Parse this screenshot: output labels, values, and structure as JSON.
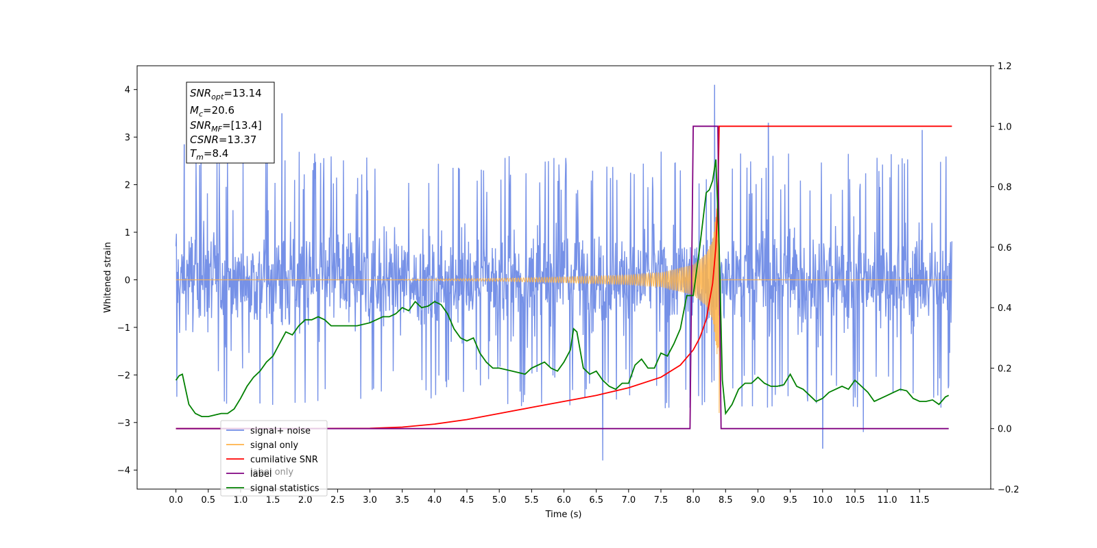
{
  "chart_data": {
    "type": "line",
    "xlabel": "Time (s)",
    "ylabel": "Whitened strain",
    "xlim": [
      -0.6,
      12.6
    ],
    "ylim": [
      -4.4,
      4.5
    ],
    "y2lim": [
      -0.2,
      1.2
    ],
    "x_ticks": [
      0.0,
      0.5,
      1.0,
      1.5,
      2.0,
      2.5,
      3.0,
      3.5,
      4.0,
      4.5,
      5.0,
      5.5,
      6.0,
      6.5,
      7.0,
      7.5,
      8.0,
      8.5,
      9.0,
      9.5,
      10.0,
      10.5,
      11.0,
      11.5
    ],
    "x_tick_labels": [
      "0.0",
      "0.5",
      "1.0",
      "1.5",
      "2.0",
      "2.5",
      "3.0",
      "3.5",
      "4.0",
      "4.5",
      "5.0",
      "5.5",
      "6.0",
      "6.5",
      "7.0",
      "7.5",
      "8.0",
      "8.5",
      "9.0",
      "9.5",
      "10.0",
      "10.5",
      "11.0",
      "11.5"
    ],
    "y_ticks": [
      4,
      3,
      2,
      1,
      0,
      -1,
      -2,
      -3,
      -4
    ],
    "y_tick_labels": [
      "4",
      "3",
      "2",
      "1",
      "0",
      "−1",
      "−2",
      "−3",
      "−4"
    ],
    "y2_ticks": [
      1.2,
      1.0,
      0.8,
      0.6,
      0.4,
      0.2,
      0.0,
      -0.2
    ],
    "y2_tick_labels": [
      "1.2",
      "1.0",
      "0.8",
      "0.6",
      "0.4",
      "0.2",
      "0.0",
      "−0.2"
    ],
    "legend_position": "lower-left",
    "legend": [
      {
        "label": "signal+ noise",
        "color": "#6f8be6"
      },
      {
        "label": "signal only",
        "color": "#ffb347"
      },
      {
        "label": "cumilative SNR",
        "color": "#ff0000"
      },
      {
        "label": "label",
        "color": "#800080"
      },
      {
        "label": "signal statistics",
        "color": "#008000"
      }
    ],
    "hidden_legend_text": [
      "label only"
    ],
    "annotation": {
      "snr_opt": "=13.14",
      "mc": "=20.6",
      "snr_mf": "=[13.4]",
      "csnr": "=13.37",
      "tm": "=8.4"
    },
    "series": [
      {
        "name": "signal+ noise",
        "axis": "left",
        "color": "#6f8be6",
        "x_range": [
          0.0,
          12.0
        ],
        "envelope_low": -2.0,
        "envelope_high": 2.0,
        "peaks": [
          {
            "x": 0.13,
            "y": 2.85
          },
          {
            "x": 1.64,
            "y": 3.5
          },
          {
            "x": 8.33,
            "y": 4.1
          },
          {
            "x": 9.16,
            "y": 3.3
          },
          {
            "x": 6.6,
            "y": -3.8
          },
          {
            "x": 10.0,
            "y": -3.55
          },
          {
            "x": 1.3,
            "y": -2.6
          },
          {
            "x": 10.63,
            "y": -3.2
          },
          {
            "x": 11.54,
            "y": 3.15
          }
        ]
      },
      {
        "name": "signal only",
        "axis": "left",
        "color": "#ffb347",
        "chirp": {
          "start": 3.5,
          "end": 8.4,
          "envelope": [
            [
              3.5,
              0.01
            ],
            [
              5.0,
              0.03
            ],
            [
              6.0,
              0.06
            ],
            [
              7.0,
              0.1
            ],
            [
              7.5,
              0.15
            ],
            [
              8.0,
              0.32
            ],
            [
              8.2,
              0.55
            ],
            [
              8.3,
              0.85
            ],
            [
              8.38,
              1.7
            ]
          ]
        }
      },
      {
        "name": "cumilative SNR",
        "axis": "right",
        "color": "#ff0000",
        "x": [
          0.0,
          2.0,
          3.0,
          3.5,
          4.0,
          4.5,
          5.0,
          5.5,
          6.0,
          6.5,
          7.0,
          7.5,
          7.8,
          8.0,
          8.1,
          8.2,
          8.3,
          8.35,
          8.38,
          8.4,
          12.0
        ],
        "y": [
          0.0,
          0.0,
          0.001,
          0.005,
          0.015,
          0.03,
          0.05,
          0.07,
          0.09,
          0.11,
          0.135,
          0.17,
          0.21,
          0.26,
          0.3,
          0.36,
          0.48,
          0.6,
          0.76,
          1.0,
          1.0
        ]
      },
      {
        "name": "label",
        "axis": "right",
        "color": "#800080",
        "x": [
          0.0,
          7.95,
          8.0,
          8.38,
          8.43,
          11.95
        ],
        "y": [
          0.0,
          0.0,
          1.0,
          1.0,
          0.0,
          0.0
        ]
      },
      {
        "name": "signal statistics",
        "axis": "right",
        "color": "#008000",
        "x": [
          0.0,
          0.05,
          0.1,
          0.15,
          0.2,
          0.3,
          0.4,
          0.5,
          0.6,
          0.7,
          0.8,
          0.9,
          1.0,
          1.1,
          1.2,
          1.3,
          1.4,
          1.5,
          1.6,
          1.7,
          1.8,
          1.9,
          2.0,
          2.1,
          2.2,
          2.3,
          2.4,
          2.5,
          2.6,
          2.8,
          3.0,
          3.2,
          3.3,
          3.4,
          3.5,
          3.6,
          3.7,
          3.8,
          3.9,
          4.0,
          4.1,
          4.2,
          4.3,
          4.4,
          4.5,
          4.6,
          4.7,
          4.8,
          4.9,
          5.0,
          5.2,
          5.4,
          5.5,
          5.6,
          5.7,
          5.8,
          5.9,
          6.0,
          6.1,
          6.15,
          6.2,
          6.3,
          6.4,
          6.5,
          6.6,
          6.7,
          6.8,
          6.9,
          7.0,
          7.1,
          7.2,
          7.3,
          7.4,
          7.5,
          7.6,
          7.7,
          7.8,
          7.9,
          8.0,
          8.1,
          8.2,
          8.25,
          8.3,
          8.35,
          8.4,
          8.45,
          8.5,
          8.6,
          8.7,
          8.8,
          8.9,
          9.0,
          9.1,
          9.2,
          9.3,
          9.4,
          9.5,
          9.6,
          9.7,
          9.8,
          9.9,
          10.0,
          10.1,
          10.2,
          10.3,
          10.4,
          10.5,
          10.6,
          10.7,
          10.8,
          10.9,
          11.0,
          11.1,
          11.2,
          11.3,
          11.4,
          11.5,
          11.6,
          11.7,
          11.8,
          11.9,
          11.95
        ],
        "y": [
          0.16,
          0.175,
          0.18,
          0.13,
          0.08,
          0.05,
          0.04,
          0.04,
          0.045,
          0.05,
          0.05,
          0.065,
          0.1,
          0.14,
          0.17,
          0.19,
          0.22,
          0.24,
          0.28,
          0.32,
          0.31,
          0.34,
          0.36,
          0.36,
          0.37,
          0.36,
          0.34,
          0.34,
          0.34,
          0.34,
          0.35,
          0.37,
          0.37,
          0.38,
          0.4,
          0.39,
          0.42,
          0.4,
          0.405,
          0.42,
          0.41,
          0.38,
          0.33,
          0.3,
          0.29,
          0.3,
          0.25,
          0.22,
          0.2,
          0.2,
          0.19,
          0.18,
          0.2,
          0.21,
          0.22,
          0.2,
          0.19,
          0.22,
          0.26,
          0.33,
          0.32,
          0.2,
          0.18,
          0.19,
          0.16,
          0.14,
          0.13,
          0.15,
          0.15,
          0.21,
          0.23,
          0.2,
          0.2,
          0.25,
          0.24,
          0.28,
          0.33,
          0.44,
          0.44,
          0.6,
          0.78,
          0.79,
          0.82,
          0.89,
          0.6,
          0.16,
          0.05,
          0.08,
          0.13,
          0.15,
          0.15,
          0.17,
          0.15,
          0.14,
          0.14,
          0.145,
          0.18,
          0.14,
          0.13,
          0.11,
          0.09,
          0.1,
          0.12,
          0.13,
          0.14,
          0.13,
          0.16,
          0.14,
          0.12,
          0.09,
          0.1,
          0.11,
          0.12,
          0.13,
          0.125,
          0.1,
          0.09,
          0.09,
          0.095,
          0.08,
          0.105,
          0.11
        ]
      }
    ]
  }
}
